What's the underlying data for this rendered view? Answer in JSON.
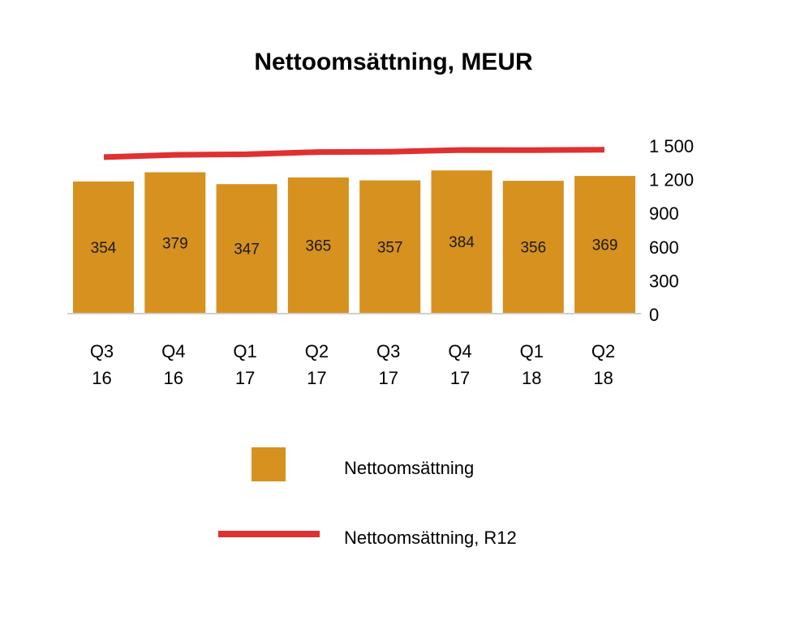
{
  "colors": {
    "bar": "#d6911f",
    "line": "#e03030",
    "axis": "#bfbfbf"
  },
  "chart_data": {
    "type": "bar",
    "title": "Nettoomsättning, MEUR",
    "xlabel": "",
    "ylabel": "",
    "categories": [
      [
        "Q3",
        "16"
      ],
      [
        "Q4",
        "16"
      ],
      [
        "Q1",
        "17"
      ],
      [
        "Q2",
        "17"
      ],
      [
        "Q3",
        "17"
      ],
      [
        "Q4",
        "17"
      ],
      [
        "Q1",
        "18"
      ],
      [
        "Q2",
        "18"
      ]
    ],
    "ylim": [
      0,
      1500
    ],
    "yticks": [
      0,
      300,
      600,
      900,
      1200,
      1500
    ],
    "ytick_labels": [
      "0",
      "300",
      "600",
      "900",
      "1 200",
      "1 500"
    ],
    "y_axis_position": "right",
    "grid": false,
    "legend_position": "bottom",
    "series": [
      {
        "name": "Nettoomsättning",
        "type": "bar",
        "values": [
          354,
          379,
          347,
          365,
          357,
          384,
          356,
          369
        ],
        "data_labels": [
          "354",
          "379",
          "347",
          "365",
          "357",
          "384",
          "356",
          "369"
        ]
      },
      {
        "name": "Nettoomsättning, R12",
        "type": "line",
        "values": [
          1400,
          1420,
          1425,
          1445,
          1448,
          1463,
          1462,
          1466
        ]
      }
    ]
  }
}
